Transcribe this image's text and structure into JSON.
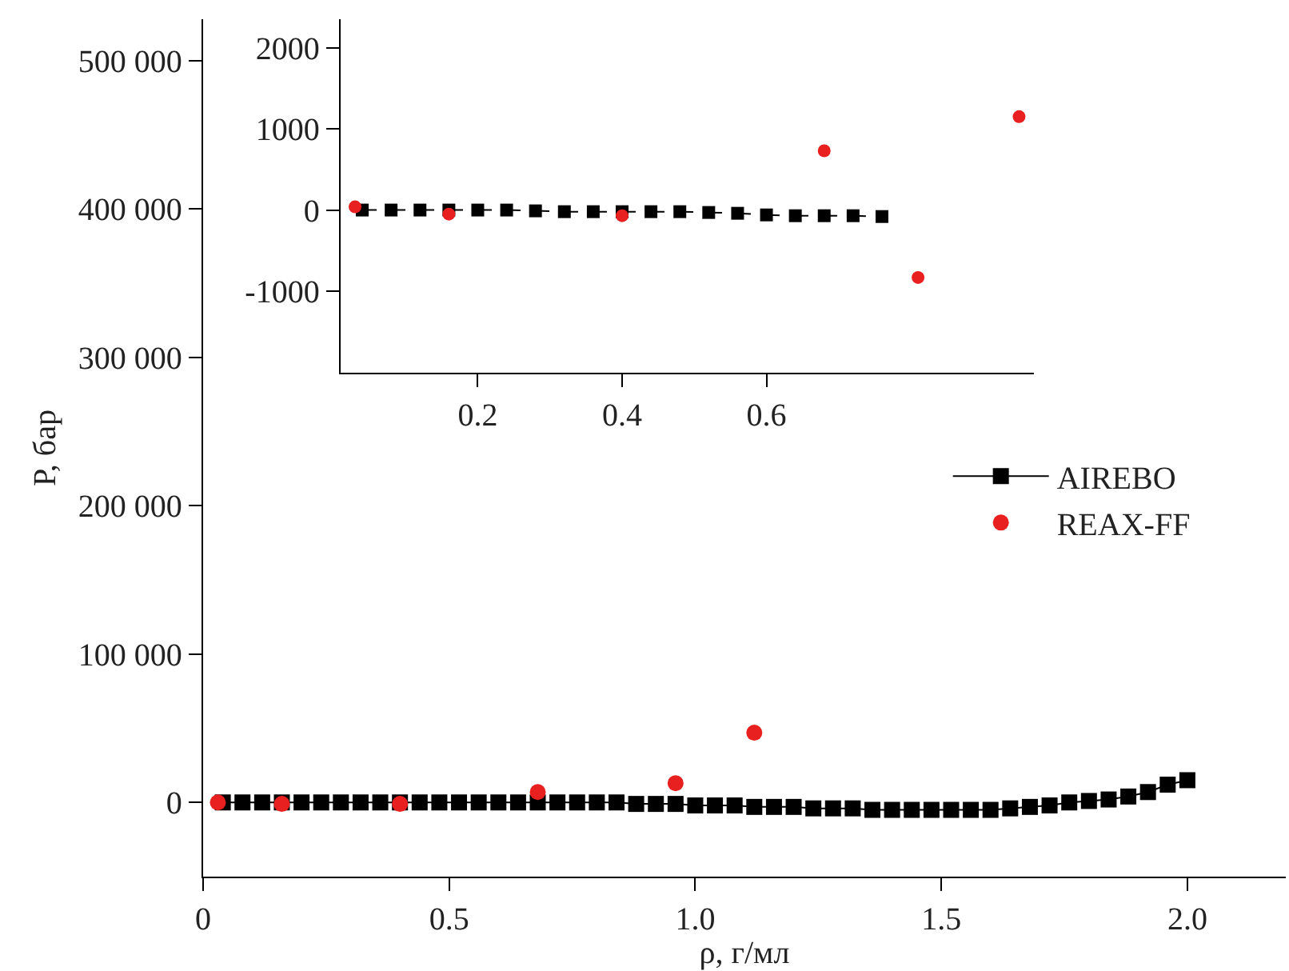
{
  "chart_data": [
    {
      "type": "scatter",
      "xlabel": "ρ, г/мл",
      "ylabel": "P, бар",
      "xlim": [
        0,
        2.2
      ],
      "ylim": [
        -50000,
        528000
      ],
      "xticks": [
        0,
        0.5,
        {
          "value": 1.0,
          "label": "1.0"
        },
        1.5,
        {
          "value": 2.0,
          "label": "2.0"
        }
      ],
      "yticks": [
        0,
        {
          "value": 100000,
          "label": "100 000"
        },
        {
          "value": 200000,
          "label": "200 000"
        },
        {
          "value": 300000,
          "label": "300 000"
        },
        {
          "value": 400000,
          "label": "400 000"
        },
        {
          "value": 500000,
          "label": "500 000"
        }
      ],
      "legend": "right",
      "series": [
        {
          "name": "AIREBO",
          "type": "line",
          "marker": "square",
          "line_style": "solid",
          "color": "#000000",
          "x": [
            0.04,
            0.08,
            0.12,
            0.16,
            0.2,
            0.24,
            0.28,
            0.32,
            0.36,
            0.4,
            0.44,
            0.48,
            0.52,
            0.56,
            0.6,
            0.64,
            0.68,
            0.72,
            0.76,
            0.8,
            0.84,
            0.88,
            0.92,
            0.96,
            1.0,
            1.04,
            1.08,
            1.12,
            1.16,
            1.2,
            1.24,
            1.28,
            1.32,
            1.36,
            1.4,
            1.44,
            1.48,
            1.52,
            1.56,
            1.6,
            1.64,
            1.68,
            1.72,
            1.76,
            1.8,
            1.84,
            1.88,
            1.92,
            1.96,
            2.0
          ],
          "values": [
            0,
            0,
            0,
            0,
            0,
            0,
            0,
            0,
            0,
            0,
            0,
            0,
            0,
            0,
            0,
            0,
            0,
            0,
            0,
            0,
            0,
            -1000,
            -1000,
            -1000,
            -2000,
            -2000,
            -2000,
            -3000,
            -3000,
            -3000,
            -4000,
            -4000,
            -4000,
            -5000,
            -5000,
            -5000,
            -5000,
            -5000,
            -5000,
            -5000,
            -4000,
            -3000,
            -2000,
            0,
            1000,
            2000,
            4000,
            7000,
            12000,
            15000
          ]
        },
        {
          "name": "REAX-FF",
          "marker": "circle",
          "color": "#e8201f",
          "x": [
            0.03,
            0.16,
            0.4,
            0.68,
            0.96,
            1.12
          ],
          "values": [
            0,
            -1000,
            -1000,
            7000,
            13000,
            47000
          ]
        }
      ]
    },
    {
      "type": "scatter",
      "xlim": [
        0.01,
        0.97
      ],
      "ylim": [
        -2000,
        2350
      ],
      "xticks": [
        0.2,
        0.4,
        0.6
      ],
      "yticks": [
        -1000,
        0,
        1000,
        2000
      ],
      "legend": false,
      "series": [
        {
          "type": "line",
          "marker": "square",
          "line_style": "dashed",
          "color": "#000000",
          "x": [
            0.04,
            0.08,
            0.12,
            0.16,
            0.2,
            0.24,
            0.28,
            0.32,
            0.36,
            0.4,
            0.44,
            0.48,
            0.52,
            0.56,
            0.6,
            0.64,
            0.68,
            0.72,
            0.76
          ],
          "values": [
            0,
            0,
            0,
            0,
            0,
            0,
            -10,
            -20,
            -20,
            -20,
            -20,
            -20,
            -30,
            -40,
            -60,
            -70,
            -70,
            -70,
            -80
          ]
        },
        {
          "marker": "circle",
          "color": "#e8201f",
          "x": [
            0.03,
            0.16,
            0.4,
            0.68,
            0.81,
            0.95
          ],
          "values": [
            40,
            -50,
            -70,
            730,
            -830,
            1150
          ]
        }
      ]
    }
  ]
}
